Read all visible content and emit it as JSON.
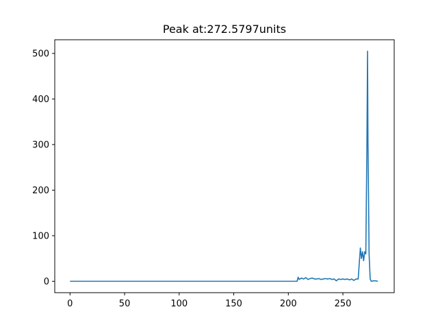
{
  "chart_data": {
    "type": "line",
    "title": "Peak at:272.5797units",
    "xlabel": "",
    "ylabel": "",
    "xlim": [
      -14,
      297
    ],
    "ylim": [
      -25,
      530
    ],
    "xticks": [
      0,
      50,
      100,
      150,
      200,
      250
    ],
    "yticks": [
      0,
      100,
      200,
      300,
      400,
      500
    ],
    "grid": false,
    "color": "#1f77b4",
    "x": [
      0,
      50,
      100,
      150,
      200,
      208,
      209,
      210,
      212,
      214,
      216,
      218,
      220,
      222,
      224,
      226,
      228,
      230,
      232,
      234,
      236,
      238,
      240,
      242,
      244,
      246,
      248,
      250,
      252,
      254,
      256,
      258,
      260,
      262,
      264,
      265,
      266,
      267,
      268,
      269,
      270,
      271,
      272,
      272.58,
      273,
      274,
      275,
      276,
      278,
      280,
      282
    ],
    "y": [
      0,
      0,
      0,
      0,
      0,
      0,
      9,
      4,
      7,
      5,
      8,
      4,
      6,
      7,
      5,
      5,
      6,
      4,
      5,
      6,
      5,
      6,
      4,
      5,
      1,
      5,
      4,
      5,
      4,
      5,
      3,
      5,
      2,
      5,
      5,
      40,
      73,
      50,
      65,
      45,
      65,
      60,
      300,
      505,
      300,
      60,
      5,
      0,
      1,
      1,
      0
    ]
  }
}
